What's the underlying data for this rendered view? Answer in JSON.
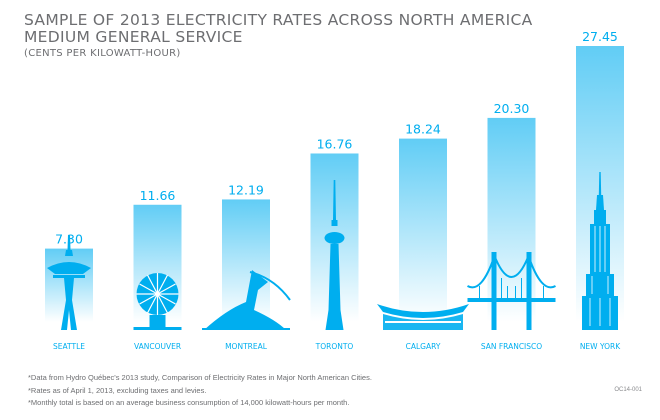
{
  "chart_data": {
    "type": "bar",
    "title": "SAMPLE OF 2013 ELECTRICITY RATES ACROSS NORTH AMERICA MEDIUM GENERAL SERVICE",
    "title_lines": [
      "SAMPLE OF 2013 ELECTRICITY RATES ACROSS NORTH AMERICA",
      "MEDIUM GENERAL SERVICE"
    ],
    "subtitle": "(CENTS PER KILOWATT-HOUR)",
    "categories": [
      "SEATTLE",
      "VANCOUVER",
      "MONTREAL",
      "TORONTO",
      "CALGARY",
      "SAN FRANCISCO",
      "NEW YORK"
    ],
    "values": [
      7.3,
      11.66,
      12.19,
      16.76,
      18.24,
      20.3,
      27.45
    ],
    "value_labels": [
      "7.30",
      "11.66",
      "12.19",
      "16.76",
      "18.24",
      "20.30",
      "27.45"
    ],
    "icons": [
      "space-needle-icon",
      "science-world-icon",
      "olympic-stadium-icon",
      "cn-tower-icon",
      "saddledome-icon",
      "golden-gate-bridge-icon",
      "empire-state-building-icon"
    ],
    "ylim": [
      0,
      27.45
    ],
    "grid": false,
    "legend": "none",
    "colors": {
      "bar_top": "#00aeef",
      "bar_bottom": "#ffffff",
      "label": "#00aeef",
      "icon": "#00aeef",
      "text_gray": "#6d6e71"
    }
  },
  "footnotes": [
    "*Data from Hydro Québec's 2013 study, Comparison of Electricity Rates in Major North American Cities.",
    "*Rates as of April 1, 2013, excluding taxes and levies.",
    "*Monthly total is based on an average business consumption of 14,000 kilowatt-hours per month."
  ],
  "doc_code": "OC14-001"
}
